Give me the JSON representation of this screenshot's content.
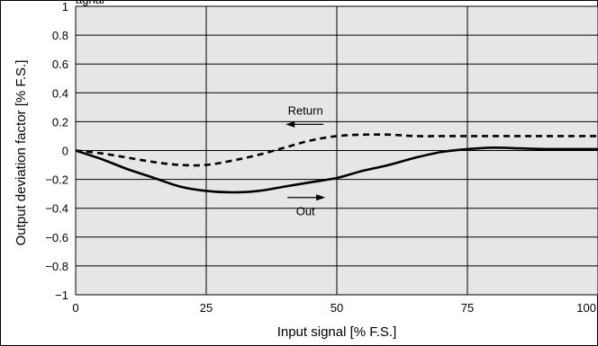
{
  "chart_data": {
    "type": "line",
    "xlabel": "Input signal [% F.S.]",
    "ylabel": "Output deviation factor [% F.S.]",
    "xlim": [
      0,
      100
    ],
    "ylim": [
      -1,
      1
    ],
    "x_ticks": [
      0,
      25,
      50,
      75,
      100
    ],
    "y_ticks": [
      -1,
      -0.8,
      -0.6,
      -0.4,
      -0.2,
      0,
      0.2,
      0.4,
      0.6,
      0.8,
      1
    ],
    "x_tick_labels": [
      "0",
      "25",
      "50",
      "75",
      "100"
    ],
    "y_tick_labels": [
      "−1",
      "−0.8",
      "−0.6",
      "−0.4",
      "−0.2",
      "0",
      "0.2",
      "0.4",
      "0.6",
      "0.8",
      "1"
    ],
    "grid": true,
    "background": "#e6e6e6",
    "series": [
      {
        "name": "Out",
        "style": "solid",
        "color": "#000000",
        "x": [
          0,
          5,
          10,
          15,
          20,
          25,
          30,
          35,
          40,
          45,
          50,
          55,
          60,
          65,
          70,
          75,
          80,
          85,
          90,
          95,
          100
        ],
        "y": [
          0,
          -0.06,
          -0.13,
          -0.19,
          -0.25,
          -0.28,
          -0.29,
          -0.28,
          -0.25,
          -0.22,
          -0.19,
          -0.14,
          -0.1,
          -0.05,
          -0.01,
          0.01,
          0.02,
          0.015,
          0.01,
          0.01,
          0.01
        ]
      },
      {
        "name": "Return",
        "style": "dashed",
        "color": "#000000",
        "x": [
          0,
          5,
          10,
          15,
          20,
          25,
          30,
          35,
          40,
          45,
          50,
          55,
          60,
          65,
          70,
          75,
          80,
          85,
          90,
          95,
          100
        ],
        "y": [
          0,
          -0.02,
          -0.05,
          -0.08,
          -0.1,
          -0.1,
          -0.07,
          -0.03,
          0.02,
          0.07,
          0.1,
          0.11,
          0.11,
          0.1,
          0.1,
          0.1,
          0.1,
          0.1,
          0.1,
          0.1,
          0.1
        ]
      }
    ],
    "annotations": [
      {
        "text": "Return",
        "arrow": "left",
        "x": 44,
        "y": 0.25
      },
      {
        "text": "Out",
        "arrow": "right",
        "x": 44,
        "y": -0.45
      }
    ],
    "top_label_fragment": "agnal"
  }
}
